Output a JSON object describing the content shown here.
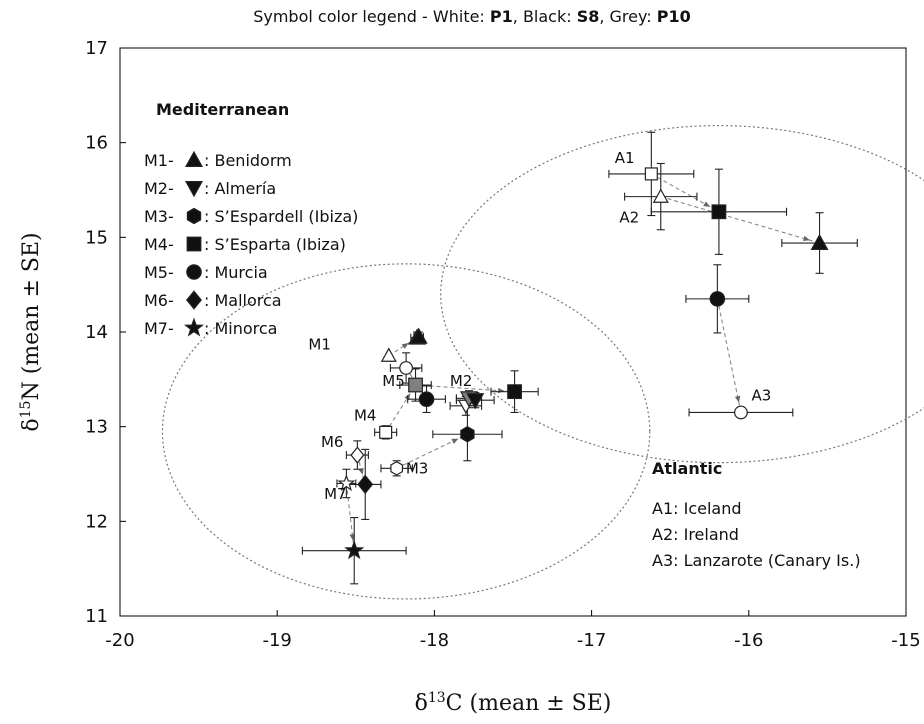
{
  "chart_data": {
    "type": "scatter",
    "legend_heading": {
      "prefix": "Symbol color legend - White: ",
      "white": "P1",
      "sep1": ", Black: ",
      "black": "S8",
      "sep2": ", Grey: ",
      "grey": "P10"
    },
    "xlabel_main": "δ",
    "xlabel_sup": "13",
    "xlabel_rest": "C (mean ± SE)",
    "ylabel_main": "δ",
    "ylabel_sup": "15",
    "ylabel_rest": "N (mean ± SE)",
    "xlim": [
      -20,
      -15
    ],
    "ylim": [
      11,
      17
    ],
    "xticks": [
      -20,
      -19,
      -18,
      -17,
      -16,
      -15
    ],
    "yticks": [
      11,
      12,
      13,
      14,
      15,
      16,
      17
    ],
    "grid": false,
    "colors": {
      "white": "#ffffff",
      "black": "#111111",
      "grey": "#808080",
      "edge": "#222222",
      "connector": "#888888",
      "ellipse": "#777777"
    },
    "groups": [
      {
        "heading": "Mediterranean",
        "legend": [
          {
            "code": "M1-",
            "symbol": "triangle-up",
            "name": ": Benidorm"
          },
          {
            "code": "M2-",
            "symbol": "triangle-down",
            "name": ": Almería"
          },
          {
            "code": "M3-",
            "symbol": "hexagon",
            "name": ": S’Espardell (Ibiza)"
          },
          {
            "code": "M4-",
            "symbol": "square",
            "name": ": S’Esparta (Ibiza)"
          },
          {
            "code": "M5-",
            "symbol": "circle",
            "name": ": Murcia"
          },
          {
            "code": "M6-",
            "symbol": "diamond",
            "name": ": Mallorca"
          },
          {
            "code": "M7-",
            "symbol": "star",
            "name": ": Minorca"
          }
        ],
        "ellipse": {
          "cx": -18.18,
          "cy": 12.95,
          "rx": 1.55,
          "ry": 1.77
        }
      },
      {
        "heading": "Atlantic",
        "legend": [
          {
            "code": "A1",
            "name": ": Iceland"
          },
          {
            "code": "A2",
            "name": ": Ireland"
          },
          {
            "code": "A3",
            "name": ": Lanzarote (Canary Is.)"
          }
        ],
        "ellipse": {
          "cx": -16.19,
          "cy": 14.4,
          "rx": 1.77,
          "ry": 1.78
        }
      }
    ],
    "site_labels": [
      {
        "text": "M1",
        "x": -18.73,
        "y": 13.87
      },
      {
        "text": "M5",
        "x": -18.26,
        "y": 13.48
      },
      {
        "text": "M2",
        "x": -17.83,
        "y": 13.48
      },
      {
        "text": "M4",
        "x": -18.44,
        "y": 13.12
      },
      {
        "text": "M6",
        "x": -18.65,
        "y": 12.84
      },
      {
        "text": "M3",
        "x": -18.11,
        "y": 12.56
      },
      {
        "text": "M7",
        "x": -18.63,
        "y": 12.29
      },
      {
        "text": "A1",
        "x": -16.79,
        "y": 15.84
      },
      {
        "text": "A2",
        "x": -16.76,
        "y": 15.21
      },
      {
        "text": "A3",
        "x": -15.92,
        "y": 13.33
      }
    ],
    "series": [
      {
        "site": "M1",
        "symbol": "triangle-up",
        "connect": true,
        "points": [
          {
            "color": "white",
            "x": -18.29,
            "y": 13.75,
            "xe": 0,
            "ye": 0
          },
          {
            "color": "grey",
            "x": -18.11,
            "y": 13.94,
            "xe": 0.04,
            "ye": 0.06
          },
          {
            "color": "black",
            "x": -18.1,
            "y": 13.95,
            "xe": 0.03,
            "ye": 0.05
          }
        ]
      },
      {
        "site": "M2",
        "symbol": "triangle-down",
        "connect": true,
        "points": [
          {
            "color": "white",
            "x": -17.8,
            "y": 13.22,
            "xe": 0.1,
            "ye": 0.1
          },
          {
            "color": "grey",
            "x": -17.78,
            "y": 13.3,
            "xe": 0.08,
            "ye": 0.08
          },
          {
            "color": "black",
            "x": -17.74,
            "y": 13.28,
            "xe": 0.12,
            "ye": 0.08
          }
        ]
      },
      {
        "site": "M3",
        "symbol": "hexagon",
        "connect": true,
        "points": [
          {
            "color": "white",
            "x": -18.24,
            "y": 12.56,
            "xe": 0.1,
            "ye": 0.08
          },
          {
            "color": "black",
            "x": -17.79,
            "y": 12.92,
            "xe": 0.22,
            "ye": 0.28
          }
        ]
      },
      {
        "site": "M4",
        "symbol": "square",
        "connect": true,
        "points": [
          {
            "color": "white",
            "x": -18.31,
            "y": 12.94,
            "xe": 0.07,
            "ye": 0.07
          },
          {
            "color": "grey",
            "x": -18.12,
            "y": 13.44,
            "xe": 0.1,
            "ye": 0.17
          },
          {
            "color": "black",
            "x": -17.49,
            "y": 13.37,
            "xe": 0.15,
            "ye": 0.22
          }
        ]
      },
      {
        "site": "M5",
        "symbol": "circle",
        "connect": true,
        "points": [
          {
            "color": "white",
            "x": -18.18,
            "y": 13.62,
            "xe": 0.1,
            "ye": 0.16
          },
          {
            "color": "black",
            "x": -18.05,
            "y": 13.29,
            "xe": 0.12,
            "ye": 0.14
          }
        ]
      },
      {
        "site": "M6",
        "symbol": "diamond",
        "connect": true,
        "points": [
          {
            "color": "white",
            "x": -18.49,
            "y": 12.7,
            "xe": 0.07,
            "ye": 0.15
          },
          {
            "color": "black",
            "x": -18.44,
            "y": 12.39,
            "xe": 0.1,
            "ye": 0.37
          }
        ]
      },
      {
        "site": "M7",
        "symbol": "star",
        "connect": true,
        "points": [
          {
            "color": "white",
            "x": -18.56,
            "y": 12.4,
            "xe": 0.06,
            "ye": 0.15
          },
          {
            "color": "black",
            "x": -18.51,
            "y": 11.69,
            "xe": 0.33,
            "ye": 0.35
          }
        ]
      },
      {
        "site": "A1",
        "symbol": "square",
        "connect": true,
        "points": [
          {
            "color": "white",
            "x": -16.62,
            "y": 15.67,
            "xe": 0.27,
            "ye": 0.44
          },
          {
            "color": "black",
            "x": -16.19,
            "y": 15.27,
            "xe": 0.43,
            "ye": 0.45
          }
        ]
      },
      {
        "site": "A2",
        "symbol": "triangle-up",
        "connect": true,
        "points": [
          {
            "color": "white",
            "x": -16.56,
            "y": 15.43,
            "xe": 0.23,
            "ye": 0.35
          },
          {
            "color": "black",
            "x": -15.55,
            "y": 14.94,
            "xe": 0.24,
            "ye": 0.32
          }
        ]
      },
      {
        "site": "A3",
        "symbol": "circle",
        "connect": true,
        "points": [
          {
            "color": "black",
            "x": -16.2,
            "y": 14.35,
            "xe": 0.2,
            "ye": 0.36
          },
          {
            "color": "white",
            "x": -16.05,
            "y": 13.15,
            "xe": 0.33,
            "ye": 0
          }
        ]
      }
    ]
  }
}
